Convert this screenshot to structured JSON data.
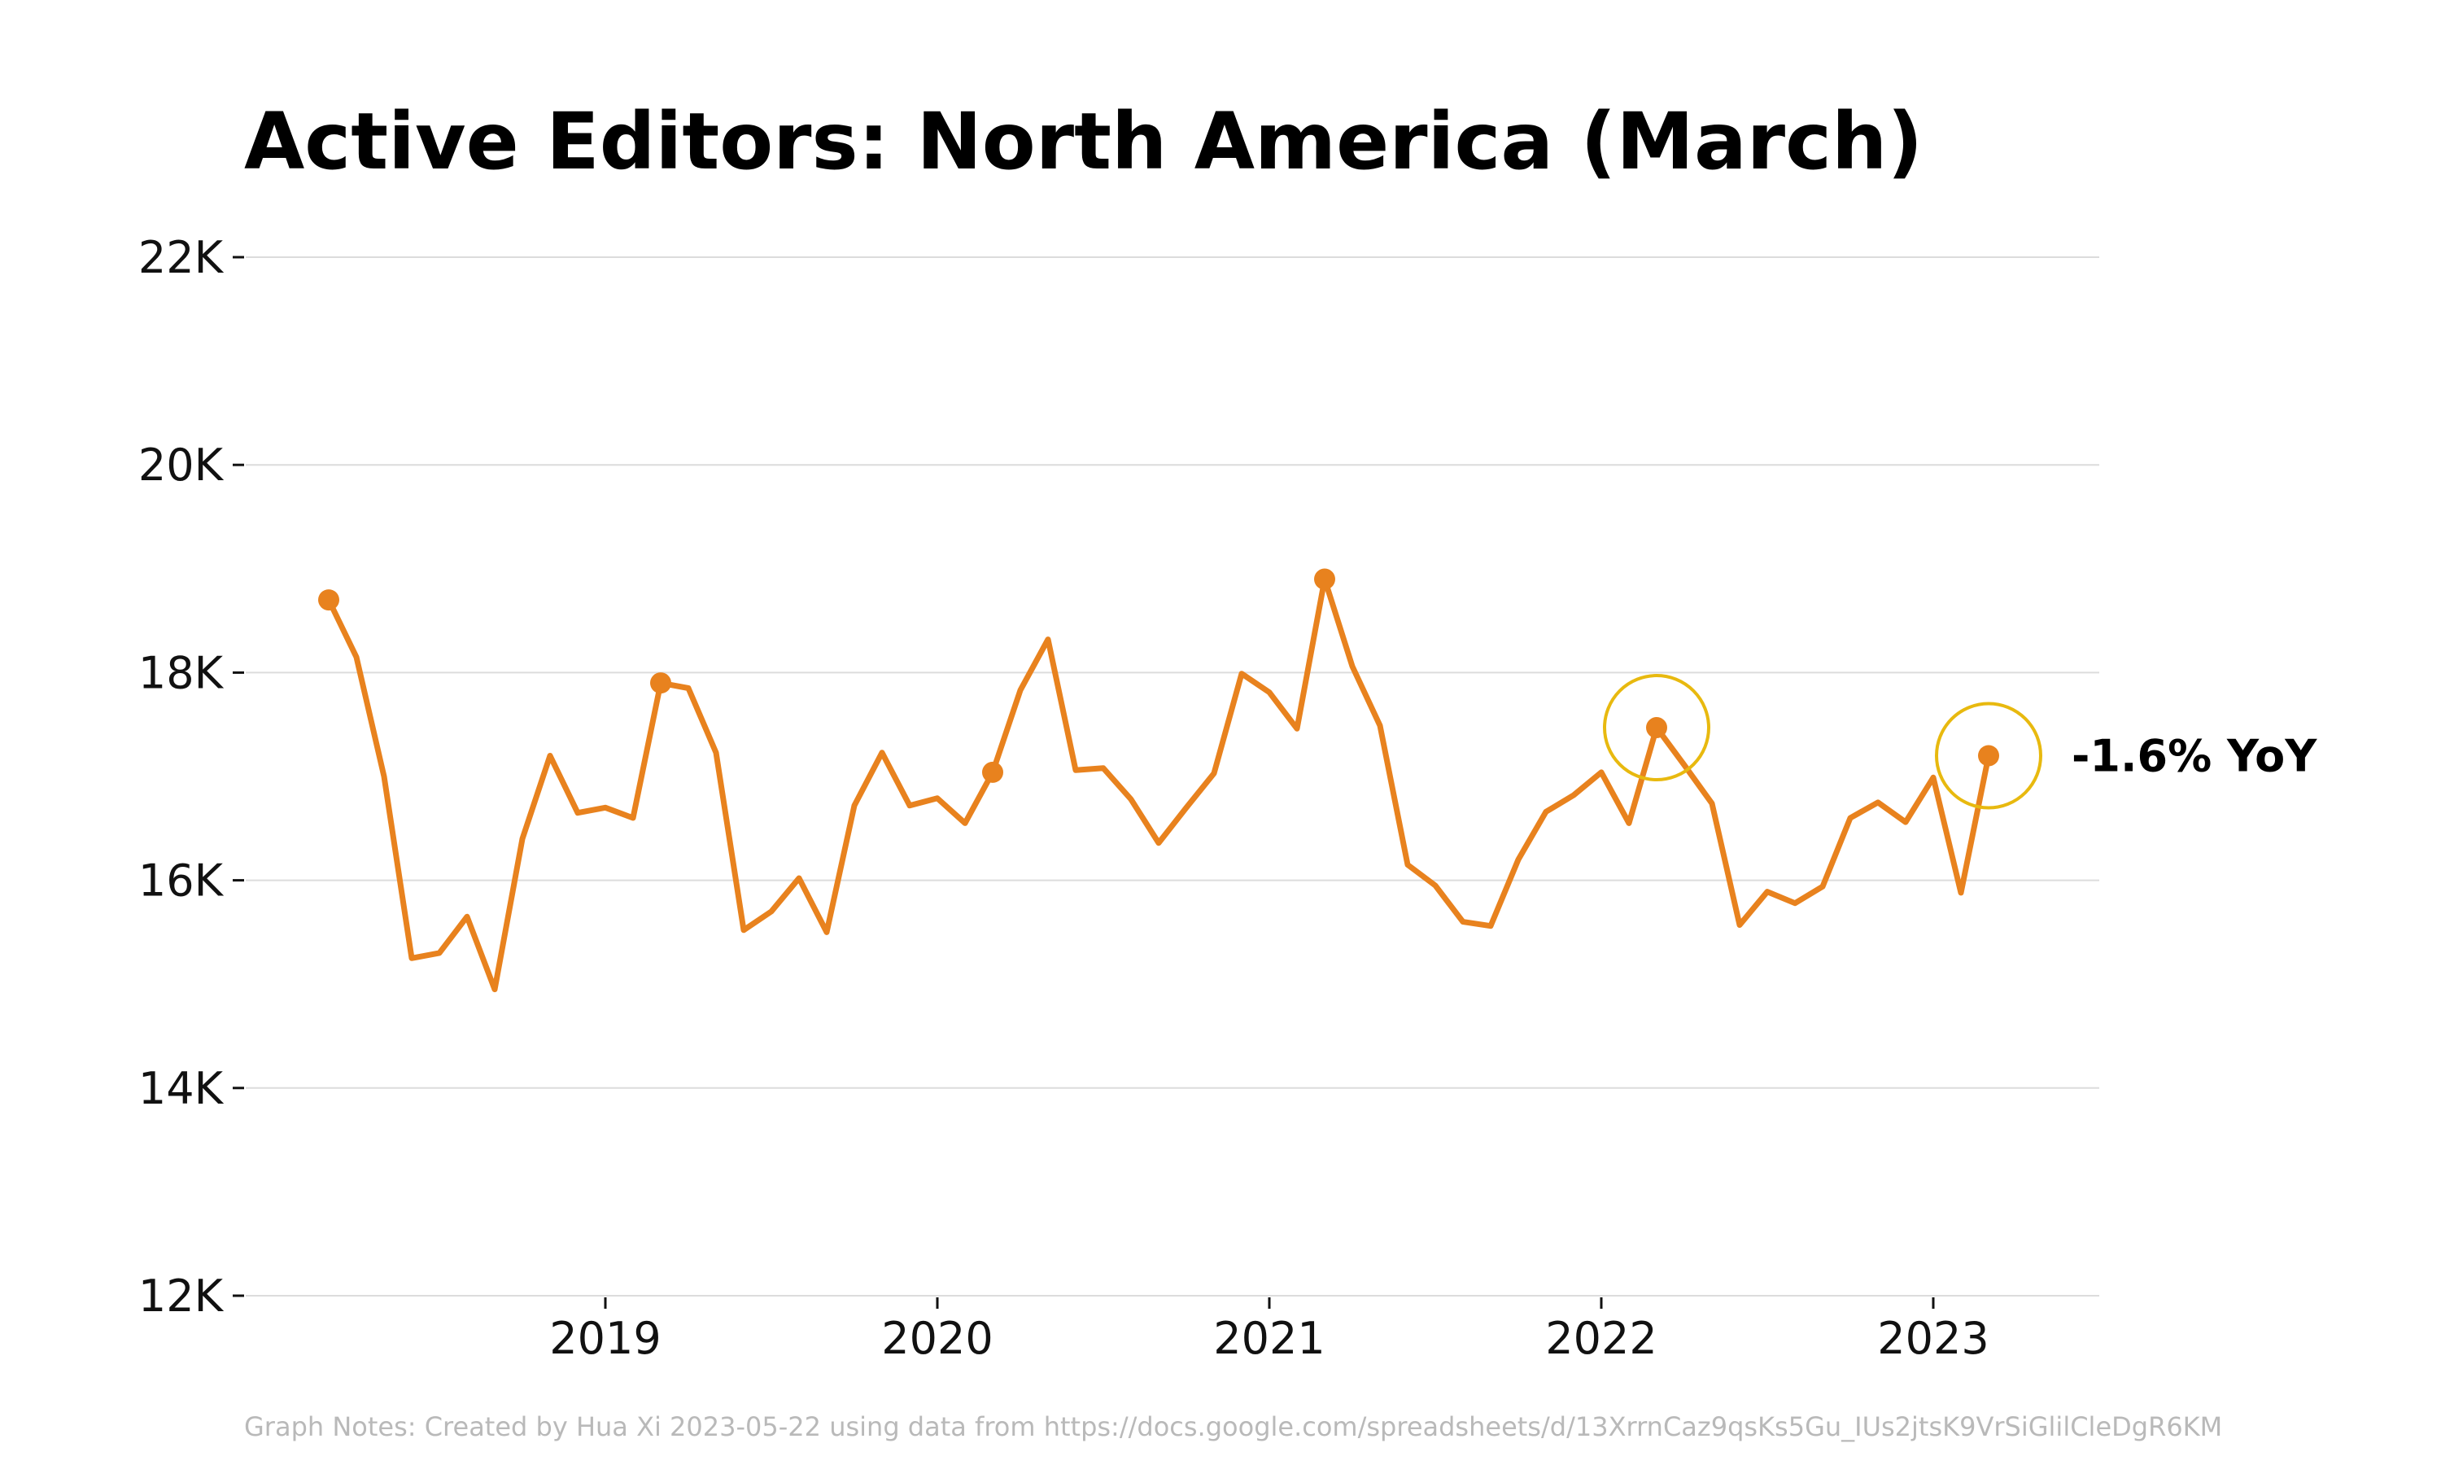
{
  "chart_data": {
    "type": "line",
    "title": "Active Editors: North America (March)",
    "xlabel": "",
    "ylabel": "",
    "ylim": [
      12000,
      22000
    ],
    "y_ticks": [
      12000,
      14000,
      16000,
      18000,
      20000,
      22000
    ],
    "y_tick_labels": [
      "12K",
      "14K",
      "16K",
      "18K",
      "20K",
      "22K"
    ],
    "x_ticks": [
      "2019-01",
      "2020-01",
      "2021-01",
      "2022-01",
      "2023-01"
    ],
    "x_tick_labels": [
      "2019",
      "2020",
      "2021",
      "2022",
      "2023"
    ],
    "xlim": [
      "2017-12",
      "2023-07"
    ],
    "grid": "horizontal",
    "line_color": "#E8821E",
    "highlight_color": "#E8B90F",
    "series": [
      {
        "x": [
          "2018-03",
          "2018-04",
          "2018-05",
          "2018-06",
          "2018-07",
          "2018-08",
          "2018-09",
          "2018-10",
          "2018-11",
          "2018-12",
          "2019-01",
          "2019-02",
          "2019-03",
          "2019-04",
          "2019-05",
          "2019-06",
          "2019-07",
          "2019-08",
          "2019-09",
          "2019-10",
          "2019-11",
          "2019-12",
          "2020-01",
          "2020-02",
          "2020-03",
          "2020-04",
          "2020-05",
          "2020-06",
          "2020-07",
          "2020-08",
          "2020-09",
          "2020-10",
          "2020-11",
          "2020-12",
          "2021-01",
          "2021-02",
          "2021-03",
          "2021-04",
          "2021-05",
          "2021-06",
          "2021-07",
          "2021-08",
          "2021-09",
          "2021-10",
          "2021-11",
          "2021-12",
          "2022-01",
          "2022-02",
          "2022-03",
          "2022-04",
          "2022-05",
          "2022-06",
          "2022-07",
          "2022-08",
          "2022-09",
          "2022-10",
          "2022-11",
          "2022-12",
          "2023-01",
          "2023-02",
          "2023-03"
        ],
        "values": [
          18700,
          18150,
          17000,
          15250,
          15300,
          15650,
          14950,
          16400,
          17200,
          16650,
          16700,
          16600,
          17900,
          17850,
          17230,
          15520,
          15700,
          16020,
          15500,
          16720,
          17230,
          16720,
          16790,
          16550,
          17040,
          17830,
          18320,
          17060,
          17080,
          16780,
          16360,
          16700,
          17030,
          17990,
          17810,
          17460,
          18900,
          18060,
          17490,
          16150,
          15950,
          15600,
          15560,
          16200,
          16660,
          16820,
          17040,
          16550,
          17470,
          17110,
          16740,
          15570,
          15890,
          15780,
          15940,
          16600,
          16750,
          16560,
          16990,
          15880,
          17200
        ],
        "march_points": [
          "2018-03",
          "2019-03",
          "2020-03",
          "2021-03",
          "2022-03",
          "2023-03"
        ],
        "circled": [
          "2022-03",
          "2023-03"
        ]
      }
    ],
    "annotations": [
      {
        "text": "-1.6% YoY",
        "x": "2023-03",
        "y": 17200
      }
    ],
    "notes": "Graph Notes: Created by Hua Xi 2023-05-22 using data from https://docs.google.com/spreadsheets/d/13XrrnCaz9qsKs5Gu_IUs2jtsK9VrSiGlilCleDgR6KM"
  }
}
